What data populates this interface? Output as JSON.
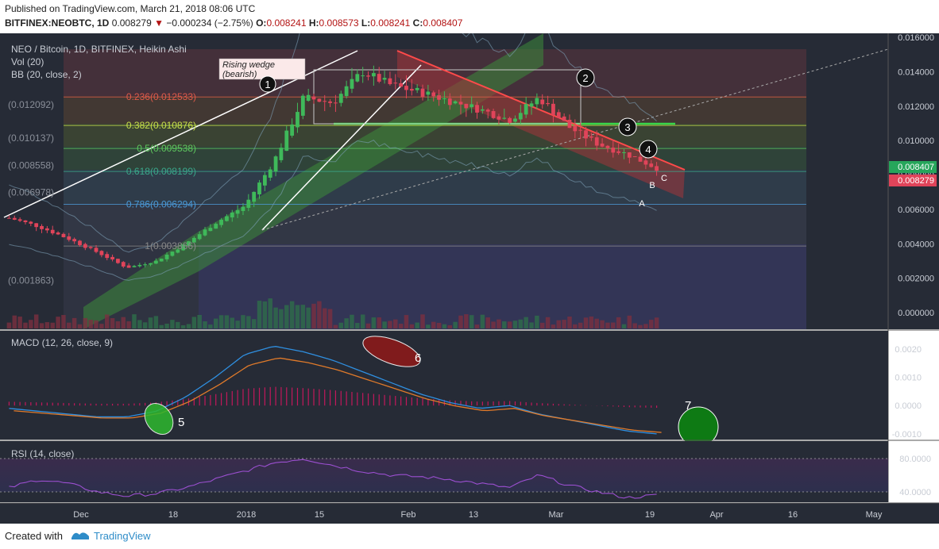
{
  "header": {
    "published": "Published on TradingView.com, March 21, 2018 08:06 UTC",
    "symbol": "BITFINEX:NEOBTC, 1D",
    "price": "0.008279",
    "change_arrow": "▼",
    "change": "−0.000234 (−2.75%)",
    "o_label": "O:",
    "o_value": "0.008241",
    "h_label": "H:",
    "h_value": "0.008573",
    "l_label": "L:",
    "l_value": "0.008241",
    "c_label": "C:",
    "c_value": "0.008407"
  },
  "legend": {
    "main": "NEO / Bitcoin, 1D, BITFINEX, Heikin Ashi",
    "vol": "Vol (20)",
    "bb": "BB (20, close, 2)",
    "macd": "MACD (12, 26, close, 9)",
    "rsi": "RSI (14, close)"
  },
  "price_axis": {
    "ticks": [
      "0.016000",
      "0.014000",
      "0.012000",
      "0.010000",
      "0.008000",
      "0.006000",
      "0.004000",
      "0.002000",
      "0.000000"
    ],
    "tag_c": "0.008407",
    "tag_last": "0.008279",
    "tag_c_color": "#26a65b",
    "tag_last_color": "#e0445a"
  },
  "macd_axis": {
    "ticks": [
      "0.0020",
      "0.0010",
      "0.0000",
      "-0.0010"
    ]
  },
  "rsi_axis": {
    "ticks": [
      "80.0000",
      "40.0000"
    ]
  },
  "time_axis": [
    "Dec",
    "18",
    "2018",
    "15",
    "Feb",
    "13",
    "Mar",
    "19",
    "Apr",
    "16",
    "May"
  ],
  "left_labels": [
    "(0.012092)",
    "(0.010137)",
    "(0.008558)",
    "(0.006978)",
    "(0.001863)"
  ],
  "fib_levels": [
    {
      "label": "0.236(0.012533)",
      "color": "#e05a4a"
    },
    {
      "label": "0.382(0.010876)",
      "color": "#c6e04a"
    },
    {
      "label": "0.5(0.009538)",
      "color": "#5ec85e"
    },
    {
      "label": "0.618(0.008199)",
      "color": "#3aa88a"
    },
    {
      "label": "0.786(0.006294)",
      "color": "#4a9ad8"
    },
    {
      "label": "1(0.003866)",
      "color": "#888888"
    }
  ],
  "annotations": {
    "wedge_note_1": "Rising wedge",
    "wedge_note_2": "(bearish)",
    "markers": [
      "1",
      "2",
      "3",
      "4",
      "5",
      "6",
      "7"
    ],
    "wave_labels": [
      "A",
      "B",
      "C"
    ]
  },
  "footer": {
    "created": "Created with",
    "brand": "TradingView"
  },
  "chart_data": {
    "type": "candlestick",
    "title": "NEO / Bitcoin, 1D, BITFINEX, Heikin Ashi",
    "x": [
      "Dec",
      "18",
      "2018",
      "15",
      "Feb",
      "13",
      "Mar",
      "19",
      "Apr",
      "16",
      "May"
    ],
    "ylim": [
      0,
      0.016
    ],
    "approx_close_series": [
      0.0055,
      0.005,
      0.0043,
      0.0035,
      0.0026,
      0.003,
      0.004,
      0.0052,
      0.0062,
      0.0088,
      0.0125,
      0.0122,
      0.014,
      0.0132,
      0.0128,
      0.0123,
      0.0118,
      0.0112,
      0.0125,
      0.0108,
      0.0098,
      0.0092,
      0.0084
    ],
    "fibonacci": [
      {
        "ratio": 0.236,
        "value": 0.012533
      },
      {
        "ratio": 0.382,
        "value": 0.010876
      },
      {
        "ratio": 0.5,
        "value": 0.009538
      },
      {
        "ratio": 0.618,
        "value": 0.008199
      },
      {
        "ratio": 0.786,
        "value": 0.006294
      },
      {
        "ratio": 1,
        "value": 0.003866
      }
    ],
    "last_close": 0.008407,
    "last_price": 0.008279,
    "macd_range": [
      -0.001,
      0.002
    ],
    "rsi_levels": [
      80,
      40
    ]
  }
}
